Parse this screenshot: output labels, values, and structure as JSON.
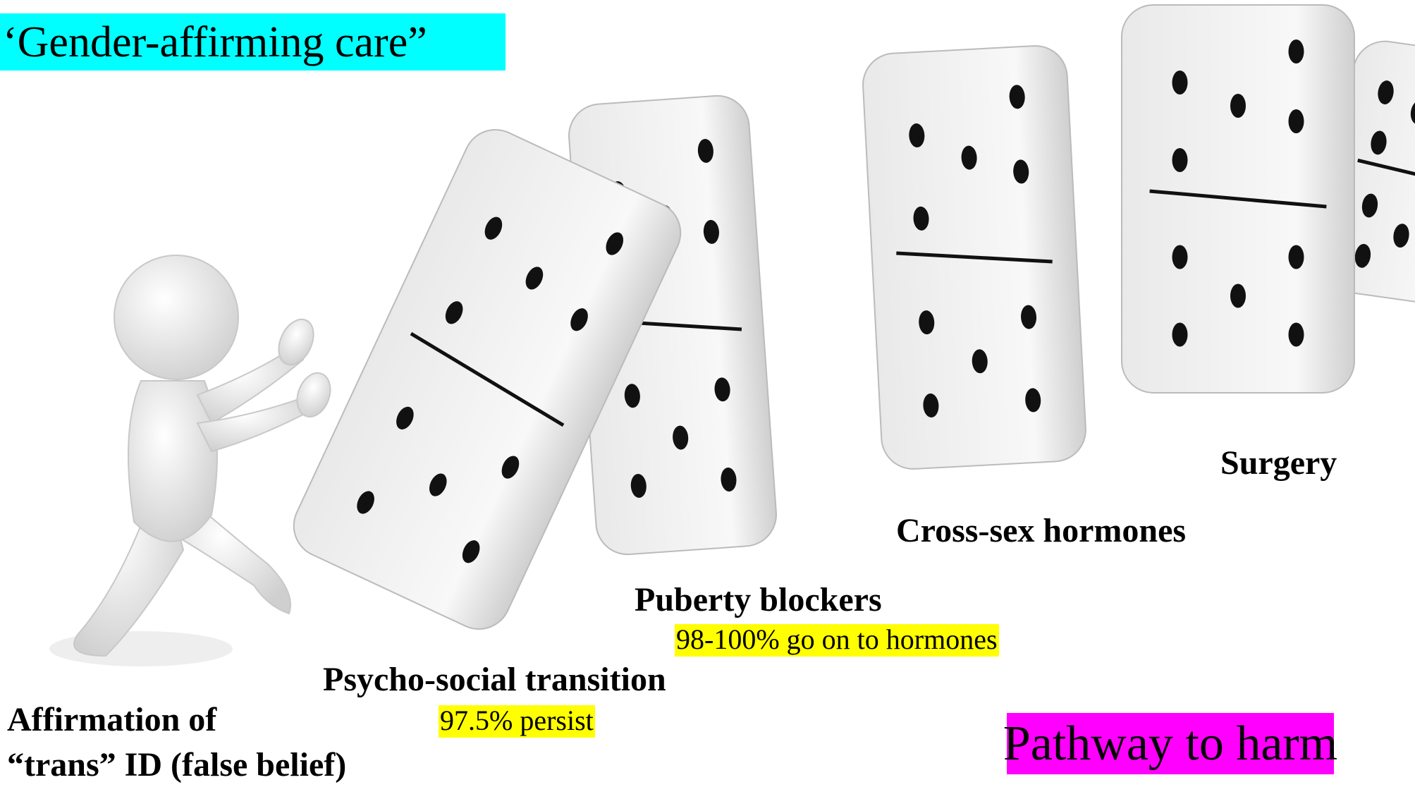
{
  "title": "‘Gender-affirming care”",
  "stages": [
    {
      "label": "Affirmation of",
      "label_line2": "“trans” ID (false belief)"
    },
    {
      "label": "Psycho-social transition",
      "note": "97.5% persist"
    },
    {
      "label": "Puberty blockers",
      "note": "98-100% go on to hormones"
    },
    {
      "label": "Cross-sex hormones"
    },
    {
      "label": "Surgery"
    }
  ],
  "footer": "Pathway to harm"
}
